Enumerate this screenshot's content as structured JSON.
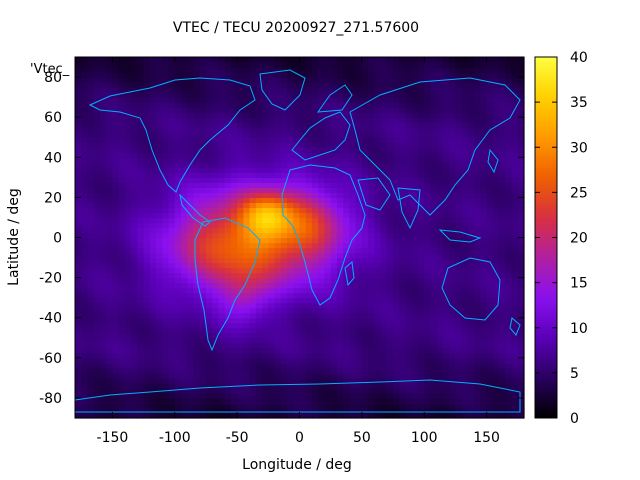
{
  "chart_data": {
    "type": "heatmap",
    "title": "VTEC / TECU 20200927_271.57600",
    "xlabel": "Longitude / deg",
    "ylabel": "Latitude / deg",
    "key_label": "'Vtec_",
    "xlim": [
      -180,
      180
    ],
    "ylim": [
      -90,
      90
    ],
    "x_ticks": [
      -150,
      -100,
      -50,
      0,
      50,
      100,
      150
    ],
    "y_ticks": [
      -80,
      -60,
      -40,
      -20,
      0,
      20,
      40,
      60,
      80
    ],
    "colorbar": {
      "range": [
        0,
        40
      ],
      "ticks": [
        0,
        5,
        10,
        15,
        20,
        25,
        30,
        35,
        40
      ],
      "palette": [
        "#000000",
        "#2a0060",
        "#5a00b8",
        "#8a10f0",
        "#b020a0",
        "#d83040",
        "#f06000",
        "#ff9a00",
        "#ffd000",
        "#ffff40"
      ]
    },
    "field": {
      "description": "VTEC peaks (~38 TECU) near lon -25, lat 12; enhanced band (20-30) over South America / Atlantic / West Africa; background 4-10 TECU; low (<4) at high latitudes",
      "peaks": [
        {
          "lon": -25,
          "lat": 12,
          "value": 38
        },
        {
          "lon": -50,
          "lat": -5,
          "value": 28
        },
        {
          "lon": 15,
          "lat": 8,
          "value": 26
        },
        {
          "lon": -40,
          "lat": -30,
          "value": 22
        }
      ],
      "background": 6,
      "polar_min": 3
    },
    "map_overlay": "coastlines"
  }
}
